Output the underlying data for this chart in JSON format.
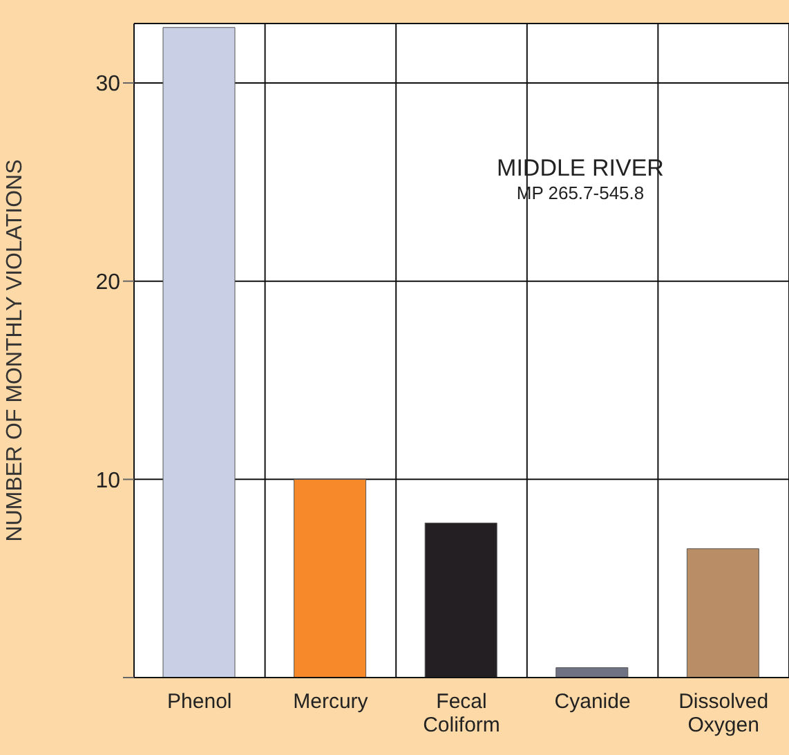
{
  "chart_data": {
    "type": "bar",
    "title": "MIDDLE RIVER",
    "subtitle": "MP 265.7-545.8",
    "ylabel": "NUMBER OF MONTHLY VIOLATIONS",
    "categories": [
      "Phenol",
      "Mercury",
      "Fecal Coliform",
      "Cyanide",
      "Dissolved Oxygen"
    ],
    "values": [
      32.8,
      10,
      7.8,
      0.5,
      6.5
    ],
    "colors": [
      "#c9d0e6",
      "#f7892a",
      "#231f22",
      "#6f7283",
      "#b98d66"
    ],
    "ylim": [
      0,
      33
    ],
    "yticks": [
      {
        "value": 0,
        "label": null
      },
      10,
      20,
      30
    ],
    "grid": true
  }
}
